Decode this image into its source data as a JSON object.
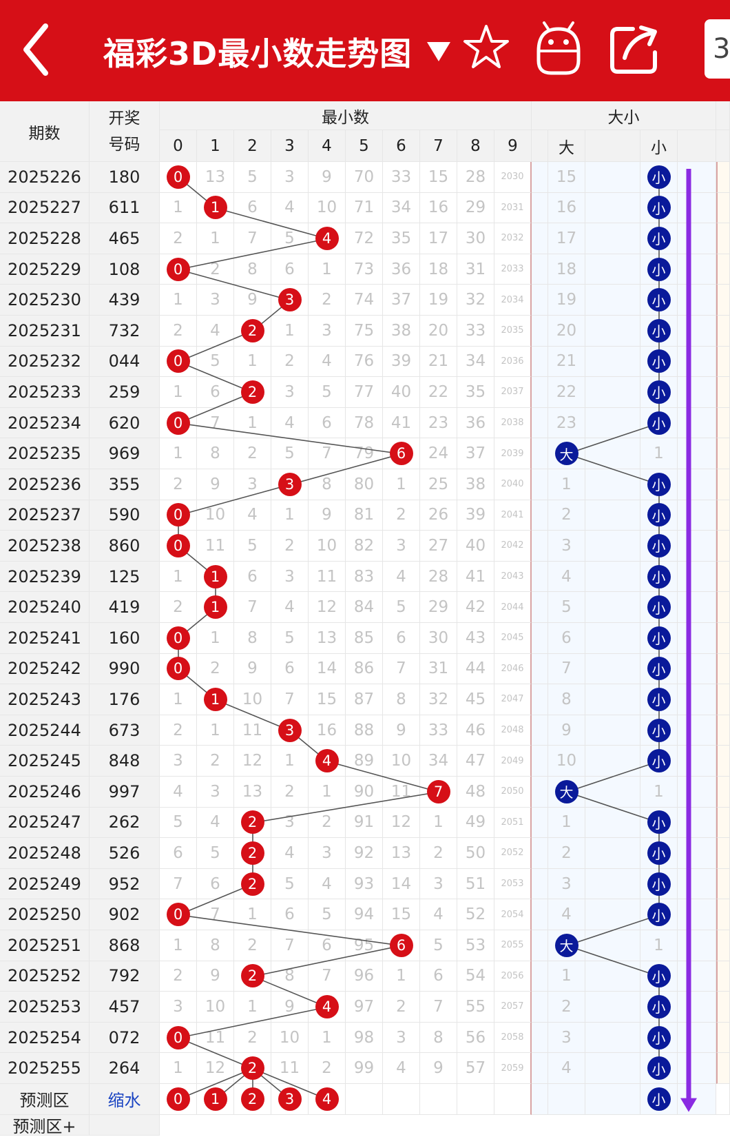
{
  "header": {
    "title": "福彩3D最小数走势图",
    "num_tab": "3"
  },
  "table": {
    "col_period": "期数",
    "col_draw_line1": "开奖",
    "col_draw_line2": "号码",
    "group_min": "最小数",
    "group_size": "大小",
    "digits": [
      "0",
      "1",
      "2",
      "3",
      "4",
      "5",
      "6",
      "7",
      "8",
      "9"
    ],
    "size_labels": [
      "大",
      "小"
    ],
    "rows": [
      {
        "p": "2025226",
        "d": "180",
        "m": "0",
        "miss": [
          "0",
          "13",
          "5",
          "3",
          "9",
          "70",
          "33",
          "15",
          "28",
          "2030"
        ],
        "big": "15",
        "small": "小"
      },
      {
        "p": "2025227",
        "d": "611",
        "m": "1",
        "miss": [
          "1",
          "1",
          "6",
          "4",
          "10",
          "71",
          "34",
          "16",
          "29",
          "2031"
        ],
        "big": "16",
        "small": "小"
      },
      {
        "p": "2025228",
        "d": "465",
        "m": "4",
        "miss": [
          "2",
          "1",
          "7",
          "5",
          "4",
          "72",
          "35",
          "17",
          "30",
          "2032"
        ],
        "big": "17",
        "small": "小"
      },
      {
        "p": "2025229",
        "d": "108",
        "m": "0",
        "miss": [
          "0",
          "2",
          "8",
          "6",
          "1",
          "73",
          "36",
          "18",
          "31",
          "2033"
        ],
        "big": "18",
        "small": "小"
      },
      {
        "p": "2025230",
        "d": "439",
        "m": "3",
        "miss": [
          "1",
          "3",
          "9",
          "3",
          "2",
          "74",
          "37",
          "19",
          "32",
          "2034"
        ],
        "big": "19",
        "small": "小"
      },
      {
        "p": "2025231",
        "d": "732",
        "m": "2",
        "miss": [
          "2",
          "4",
          "2",
          "1",
          "3",
          "75",
          "38",
          "20",
          "33",
          "2035"
        ],
        "big": "20",
        "small": "小"
      },
      {
        "p": "2025232",
        "d": "044",
        "m": "0",
        "miss": [
          "0",
          "5",
          "1",
          "2",
          "4",
          "76",
          "39",
          "21",
          "34",
          "2036"
        ],
        "big": "21",
        "small": "小"
      },
      {
        "p": "2025233",
        "d": "259",
        "m": "2",
        "miss": [
          "1",
          "6",
          "2",
          "3",
          "5",
          "77",
          "40",
          "22",
          "35",
          "2037"
        ],
        "big": "22",
        "small": "小"
      },
      {
        "p": "2025234",
        "d": "620",
        "m": "0",
        "miss": [
          "0",
          "7",
          "1",
          "4",
          "6",
          "78",
          "41",
          "23",
          "36",
          "2038"
        ],
        "big": "23",
        "small": "小"
      },
      {
        "p": "2025235",
        "d": "969",
        "m": "6",
        "miss": [
          "1",
          "8",
          "2",
          "5",
          "7",
          "79",
          "6",
          "24",
          "37",
          "2039"
        ],
        "big": "大",
        "small": "1"
      },
      {
        "p": "2025236",
        "d": "355",
        "m": "3",
        "miss": [
          "2",
          "9",
          "3",
          "3",
          "8",
          "80",
          "1",
          "25",
          "38",
          "2040"
        ],
        "big": "1",
        "small": "小"
      },
      {
        "p": "2025237",
        "d": "590",
        "m": "0",
        "miss": [
          "0",
          "10",
          "4",
          "1",
          "9",
          "81",
          "2",
          "26",
          "39",
          "2041"
        ],
        "big": "2",
        "small": "小"
      },
      {
        "p": "2025238",
        "d": "860",
        "m": "0",
        "miss": [
          "0",
          "11",
          "5",
          "2",
          "10",
          "82",
          "3",
          "27",
          "40",
          "2042"
        ],
        "big": "3",
        "small": "小"
      },
      {
        "p": "2025239",
        "d": "125",
        "m": "1",
        "miss": [
          "1",
          "1",
          "6",
          "3",
          "11",
          "83",
          "4",
          "28",
          "41",
          "2043"
        ],
        "big": "4",
        "small": "小"
      },
      {
        "p": "2025240",
        "d": "419",
        "m": "1",
        "miss": [
          "2",
          "1",
          "7",
          "4",
          "12",
          "84",
          "5",
          "29",
          "42",
          "2044"
        ],
        "big": "5",
        "small": "小"
      },
      {
        "p": "2025241",
        "d": "160",
        "m": "0",
        "miss": [
          "0",
          "1",
          "8",
          "5",
          "13",
          "85",
          "6",
          "30",
          "43",
          "2045"
        ],
        "big": "6",
        "small": "小"
      },
      {
        "p": "2025242",
        "d": "990",
        "m": "0",
        "miss": [
          "0",
          "2",
          "9",
          "6",
          "14",
          "86",
          "7",
          "31",
          "44",
          "2046"
        ],
        "big": "7",
        "small": "小"
      },
      {
        "p": "2025243",
        "d": "176",
        "m": "1",
        "miss": [
          "1",
          "1",
          "10",
          "7",
          "15",
          "87",
          "8",
          "32",
          "45",
          "2047"
        ],
        "big": "8",
        "small": "小"
      },
      {
        "p": "2025244",
        "d": "673",
        "m": "3",
        "miss": [
          "2",
          "1",
          "11",
          "3",
          "16",
          "88",
          "9",
          "33",
          "46",
          "2048"
        ],
        "big": "9",
        "small": "小"
      },
      {
        "p": "2025245",
        "d": "848",
        "m": "4",
        "miss": [
          "3",
          "2",
          "12",
          "1",
          "4",
          "89",
          "10",
          "34",
          "47",
          "2049"
        ],
        "big": "10",
        "small": "小"
      },
      {
        "p": "2025246",
        "d": "997",
        "m": "7",
        "miss": [
          "4",
          "3",
          "13",
          "2",
          "1",
          "90",
          "11",
          "7",
          "48",
          "2050"
        ],
        "big": "大",
        "small": "1"
      },
      {
        "p": "2025247",
        "d": "262",
        "m": "2",
        "miss": [
          "5",
          "4",
          "2",
          "3",
          "2",
          "91",
          "12",
          "1",
          "49",
          "2051"
        ],
        "big": "1",
        "small": "小"
      },
      {
        "p": "2025248",
        "d": "526",
        "m": "2",
        "miss": [
          "6",
          "5",
          "2",
          "4",
          "3",
          "92",
          "13",
          "2",
          "50",
          "2052"
        ],
        "big": "2",
        "small": "小"
      },
      {
        "p": "2025249",
        "d": "952",
        "m": "2",
        "miss": [
          "7",
          "6",
          "2",
          "5",
          "4",
          "93",
          "14",
          "3",
          "51",
          "2053"
        ],
        "big": "3",
        "small": "小"
      },
      {
        "p": "2025250",
        "d": "902",
        "m": "0",
        "miss": [
          "0",
          "7",
          "1",
          "6",
          "5",
          "94",
          "15",
          "4",
          "52",
          "2054"
        ],
        "big": "4",
        "small": "小"
      },
      {
        "p": "2025251",
        "d": "868",
        "m": "6",
        "miss": [
          "1",
          "8",
          "2",
          "7",
          "6",
          "95",
          "6",
          "5",
          "53",
          "2055"
        ],
        "big": "大",
        "small": "1"
      },
      {
        "p": "2025252",
        "d": "792",
        "m": "2",
        "miss": [
          "2",
          "9",
          "2",
          "8",
          "7",
          "96",
          "1",
          "6",
          "54",
          "2056"
        ],
        "big": "1",
        "small": "小"
      },
      {
        "p": "2025253",
        "d": "457",
        "m": "4",
        "miss": [
          "3",
          "10",
          "1",
          "9",
          "4",
          "97",
          "2",
          "7",
          "55",
          "2057"
        ],
        "big": "2",
        "small": "小"
      },
      {
        "p": "2025254",
        "d": "072",
        "m": "0",
        "miss": [
          "0",
          "11",
          "2",
          "10",
          "1",
          "98",
          "3",
          "8",
          "56",
          "2058"
        ],
        "big": "3",
        "small": "小"
      },
      {
        "p": "2025255",
        "d": "264",
        "m": "2",
        "miss": [
          "1",
          "12",
          "2",
          "11",
          "2",
          "99",
          "4",
          "9",
          "57",
          "2059"
        ],
        "big": "4",
        "small": "小"
      }
    ],
    "predict": {
      "label": "预测区",
      "action": "缩水",
      "balls": [
        "0",
        "1",
        "2",
        "3",
        "4"
      ],
      "size_ball": "小"
    },
    "predict_plus": "预测区+"
  },
  "colors": {
    "header_bg": "#d60f17",
    "red_ball": "#d60f17",
    "blue_ball": "#0a1a9a",
    "line": "#555555",
    "arrow": "#8a2be2",
    "miss_text": "#c4c4c4"
  },
  "icons": [
    "back-arrow-icon",
    "star-icon",
    "android-robot-icon",
    "share-icon"
  ]
}
